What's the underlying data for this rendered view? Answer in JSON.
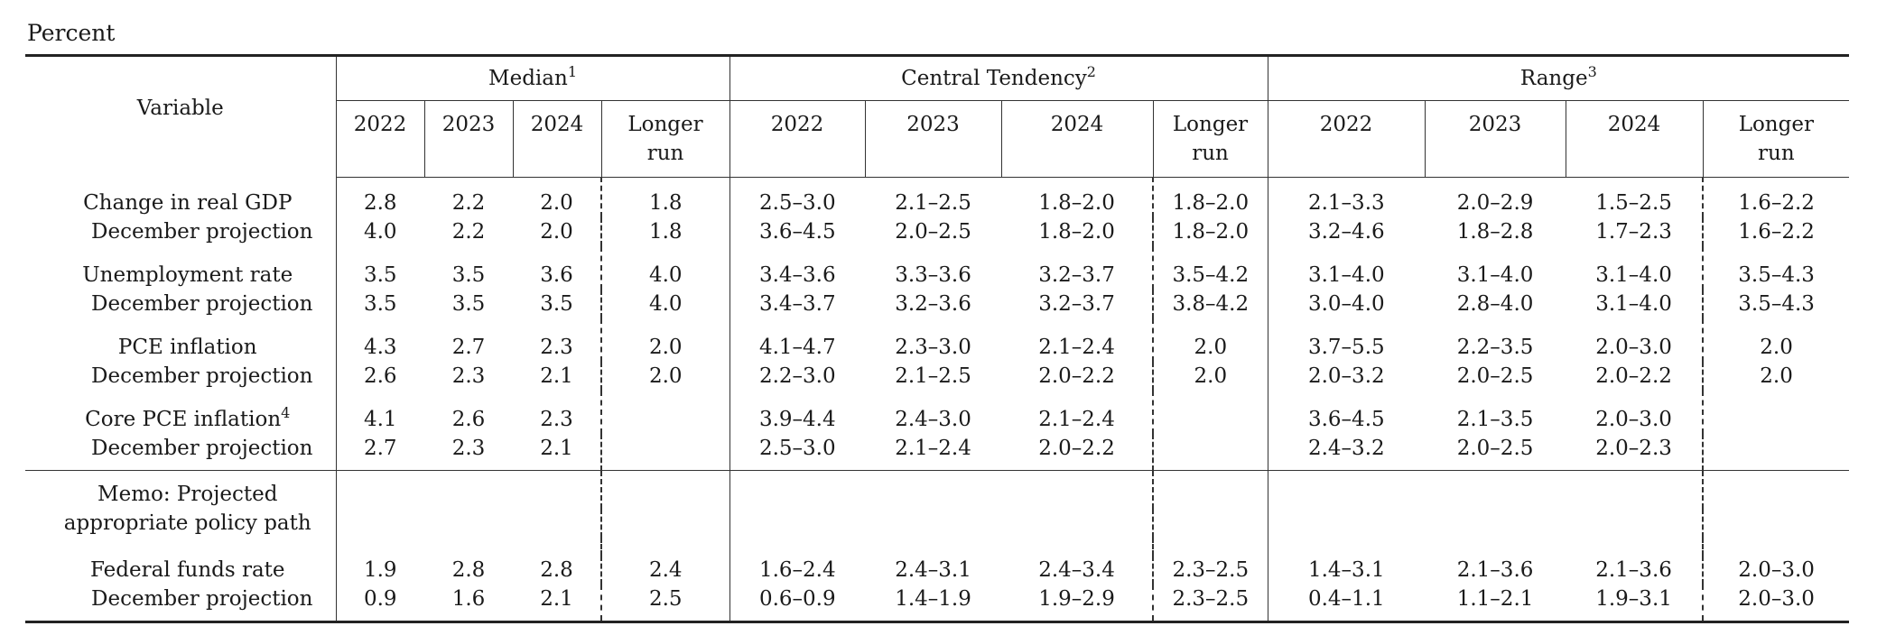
{
  "unit_label": "Percent",
  "header": {
    "variable": "Variable",
    "groups": [
      {
        "label": "Median",
        "note": "1"
      },
      {
        "label": "Central Tendency",
        "note": "2"
      },
      {
        "label": "Range",
        "note": "3"
      }
    ],
    "years": [
      "2022",
      "2023",
      "2024"
    ],
    "longer_run_line1": "Longer",
    "longer_run_line2": "run"
  },
  "rows": [
    {
      "label": "Change in real GDP",
      "note": "",
      "median": [
        "2.8",
        "2.2",
        "2.0",
        "1.8"
      ],
      "central": [
        "2.5–3.0",
        "2.1–2.5",
        "1.8–2.0",
        "1.8–2.0"
      ],
      "range": [
        "2.1–3.3",
        "2.0–2.9",
        "1.5–2.5",
        "1.6–2.2"
      ]
    },
    {
      "label": "December projection",
      "note": "",
      "median": [
        "4.0",
        "2.2",
        "2.0",
        "1.8"
      ],
      "central": [
        "3.6–4.5",
        "2.0–2.5",
        "1.8–2.0",
        "1.8–2.0"
      ],
      "range": [
        "3.2–4.6",
        "1.8–2.8",
        "1.7–2.3",
        "1.6–2.2"
      ]
    },
    {
      "label": "Unemployment rate",
      "note": "",
      "median": [
        "3.5",
        "3.5",
        "3.6",
        "4.0"
      ],
      "central": [
        "3.4–3.6",
        "3.3–3.6",
        "3.2–3.7",
        "3.5–4.2"
      ],
      "range": [
        "3.1–4.0",
        "3.1–4.0",
        "3.1–4.0",
        "3.5–4.3"
      ]
    },
    {
      "label": "December projection",
      "note": "",
      "median": [
        "3.5",
        "3.5",
        "3.5",
        "4.0"
      ],
      "central": [
        "3.4–3.7",
        "3.2–3.6",
        "3.2–3.7",
        "3.8–4.2"
      ],
      "range": [
        "3.0–4.0",
        "2.8–4.0",
        "3.1–4.0",
        "3.5–4.3"
      ]
    },
    {
      "label": "PCE inflation",
      "note": "",
      "median": [
        "4.3",
        "2.7",
        "2.3",
        "2.0"
      ],
      "central": [
        "4.1–4.7",
        "2.3–3.0",
        "2.1–2.4",
        "2.0"
      ],
      "range": [
        "3.7–5.5",
        "2.2–3.5",
        "2.0–3.0",
        "2.0"
      ]
    },
    {
      "label": "December projection",
      "note": "",
      "median": [
        "2.6",
        "2.3",
        "2.1",
        "2.0"
      ],
      "central": [
        "2.2–3.0",
        "2.1–2.5",
        "2.0–2.2",
        "2.0"
      ],
      "range": [
        "2.0–3.2",
        "2.0–2.5",
        "2.0–2.2",
        "2.0"
      ]
    },
    {
      "label": "Core PCE inflation",
      "note": "4",
      "median": [
        "4.1",
        "2.6",
        "2.3",
        ""
      ],
      "central": [
        "3.9–4.4",
        "2.4–3.0",
        "2.1–2.4",
        ""
      ],
      "range": [
        "3.6–4.5",
        "2.1–3.5",
        "2.0–3.0",
        ""
      ]
    },
    {
      "label": "December projection",
      "note": "",
      "median": [
        "2.7",
        "2.3",
        "2.1",
        ""
      ],
      "central": [
        "2.5–3.0",
        "2.1–2.4",
        "2.0–2.2",
        ""
      ],
      "range": [
        "2.4–3.2",
        "2.0–2.5",
        "2.0–2.3",
        ""
      ]
    }
  ],
  "memo": {
    "line1": "Memo: Projected",
    "line2": "appropriate policy path"
  },
  "memo_rows": [
    {
      "label": "Federal funds rate",
      "median": [
        "1.9",
        "2.8",
        "2.8",
        "2.4"
      ],
      "central": [
        "1.6–2.4",
        "2.4–3.1",
        "2.4–3.4",
        "2.3–2.5"
      ],
      "range": [
        "1.4–3.1",
        "2.1–3.6",
        "2.1–3.6",
        "2.0–3.0"
      ]
    },
    {
      "label": "December projection",
      "median": [
        "0.9",
        "1.6",
        "2.1",
        "2.5"
      ],
      "central": [
        "0.6–0.9",
        "1.4–1.9",
        "1.9–2.9",
        "2.3–2.5"
      ],
      "range": [
        "0.4–1.1",
        "1.1–2.1",
        "1.9–3.1",
        "2.0–3.0"
      ]
    }
  ]
}
